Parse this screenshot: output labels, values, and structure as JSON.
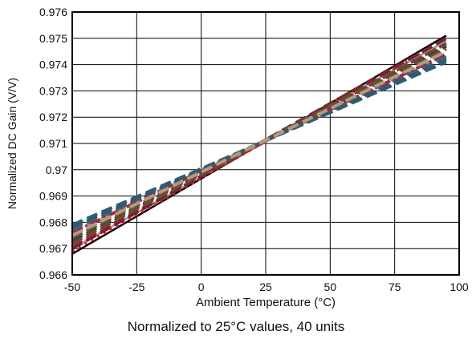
{
  "caption": "Normalized to 25°C values, 40 units",
  "chart_data": {
    "type": "line",
    "title": "",
    "xlabel": "Ambient Temperature (°C)",
    "ylabel": "Normalized DC Gain (V/V)",
    "xlim": [
      -50,
      100
    ],
    "ylim": [
      0.966,
      0.976
    ],
    "xticks": [
      -50,
      -25,
      0,
      25,
      50,
      75,
      100
    ],
    "xtick_labels": [
      "-50",
      "-25",
      "0",
      "25",
      "50",
      "75",
      "100"
    ],
    "yticks": [
      0.966,
      0.967,
      0.968,
      0.969,
      0.97,
      0.971,
      0.972,
      0.973,
      0.974,
      0.975,
      0.976
    ],
    "ytick_labels": [
      "0.966",
      "0.967",
      "0.968",
      "0.969",
      "0.97",
      "0.971",
      "0.972",
      "0.973",
      "0.974",
      "0.975",
      "0.976"
    ],
    "grid": true,
    "legend": "none",
    "x": [
      -50,
      95
    ],
    "series": [
      {
        "color": "#000000",
        "dash": "solid",
        "values": [
          0.9668,
          0.9751
        ]
      },
      {
        "color": "#999999",
        "dash": "solid",
        "values": [
          0.967,
          0.9749
        ]
      },
      {
        "color": "#d02020",
        "dash": "dotted",
        "values": [
          0.9669,
          0.975
        ]
      },
      {
        "color": "#2e5c6e",
        "dash": "dashed",
        "values": [
          0.9679,
          0.9741
        ]
      },
      {
        "color": "#b03030",
        "dash": "dashed",
        "values": [
          0.9671,
          0.9748
        ]
      },
      {
        "color": "#8a8a5a",
        "dash": "dashed",
        "values": [
          0.9675,
          0.9745
        ]
      },
      {
        "color": "#3d2e63",
        "dash": "dashed",
        "values": [
          0.9673,
          0.9747
        ]
      },
      {
        "color": "#7a1f3a",
        "dash": "dashed",
        "values": [
          0.967,
          0.975
        ]
      },
      {
        "color": "#c89a60",
        "dash": "dashed",
        "values": [
          0.9676,
          0.9744
        ]
      },
      {
        "color": "#3b6e8a",
        "dash": "dashed",
        "values": [
          0.9677,
          0.9743
        ]
      },
      {
        "color": "#d02020",
        "dash": "dashed",
        "values": [
          0.9674,
          0.9746
        ]
      },
      {
        "color": "#6b4a2e",
        "dash": "dashed",
        "values": [
          0.9672,
          0.9748
        ]
      },
      {
        "color": "#9b2a4a",
        "dash": "dashdot",
        "values": [
          0.9676,
          0.9744
        ]
      },
      {
        "color": "#5a5a2a",
        "dash": "dashed",
        "values": [
          0.9674,
          0.9746
        ]
      },
      {
        "color": "#2e5c6e",
        "dash": "dashed",
        "values": [
          0.9678,
          0.9742
        ]
      },
      {
        "color": "#b59a80",
        "dash": "dashed",
        "values": [
          0.9675,
          0.9745
        ]
      }
    ]
  }
}
